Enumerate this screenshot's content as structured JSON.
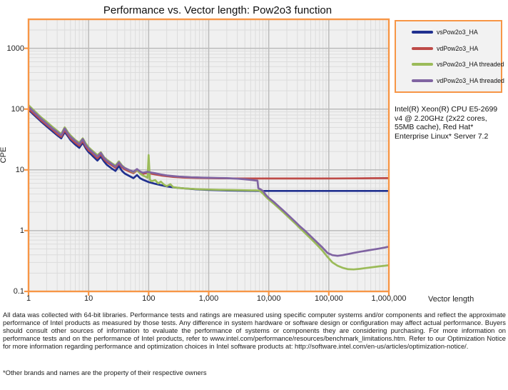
{
  "title": "Performance  vs.  Vector  length: Pow2o3  function",
  "chart_data": {
    "type": "line",
    "title": "Performance vs. Vector length: Pow2o3 function",
    "xlabel": "Vector length",
    "ylabel": "CPE",
    "x_axis": {
      "scale": "log",
      "min": 1,
      "max": 1000000,
      "tick_labels": [
        "1",
        "10",
        "100",
        "1,000",
        "10,000",
        "100,000",
        "1,000,000"
      ]
    },
    "y_axis": {
      "scale": "log",
      "min": 0.1,
      "max": 3000,
      "tick_labels": [
        "0.1",
        "1",
        "10",
        "100",
        "1000"
      ]
    },
    "grid": "log major and minor, gray on light-gray plot area, orange plot border",
    "legend_position": "outside top-right, orange-bordered box",
    "series": [
      {
        "name": "vsPow2o3_HA",
        "color": "#20308F",
        "points": [
          [
            1,
            97
          ],
          [
            1.3,
            76
          ],
          [
            1.6,
            63
          ],
          [
            2,
            52
          ],
          [
            2.5,
            43
          ],
          [
            3,
            37
          ],
          [
            3.5,
            33
          ],
          [
            4,
            42
          ],
          [
            4.5,
            36
          ],
          [
            5,
            31
          ],
          [
            6,
            26
          ],
          [
            7,
            23
          ],
          [
            8,
            28
          ],
          [
            9,
            22.5
          ],
          [
            10,
            19.5
          ],
          [
            11,
            18
          ],
          [
            12,
            16.5
          ],
          [
            14,
            14.2
          ],
          [
            16,
            16.5
          ],
          [
            18,
            13.8
          ],
          [
            20,
            12.2
          ],
          [
            24,
            10.6
          ],
          [
            28,
            9.6
          ],
          [
            32,
            11.5
          ],
          [
            36,
            9.6
          ],
          [
            40,
            8.7
          ],
          [
            48,
            7.9
          ],
          [
            56,
            7.3
          ],
          [
            64,
            8.2
          ],
          [
            72,
            7.3
          ],
          [
            80,
            6.9
          ],
          [
            96,
            6.4
          ],
          [
            100,
            6.3
          ],
          [
            128,
            5.9
          ],
          [
            160,
            5.6
          ],
          [
            200,
            5.35
          ],
          [
            256,
            5.15
          ],
          [
            320,
            5.05
          ],
          [
            400,
            4.95
          ],
          [
            512,
            4.85
          ],
          [
            640,
            4.78
          ],
          [
            800,
            4.72
          ],
          [
            1000,
            4.68
          ],
          [
            1500,
            4.62
          ],
          [
            2000,
            4.58
          ],
          [
            3000,
            4.55
          ],
          [
            5000,
            4.52
          ],
          [
            8000,
            4.5
          ],
          [
            16000,
            4.5
          ],
          [
            32000,
            4.5
          ],
          [
            64000,
            4.5
          ],
          [
            128000,
            4.5
          ],
          [
            256000,
            4.5
          ],
          [
            512000,
            4.5
          ],
          [
            1000000,
            4.5
          ]
        ]
      },
      {
        "name": "vdPow2o3_HA",
        "color": "#BE4B48",
        "points": [
          [
            1,
            101
          ],
          [
            1.3,
            80
          ],
          [
            1.6,
            66
          ],
          [
            2,
            55
          ],
          [
            2.5,
            46
          ],
          [
            3,
            39
          ],
          [
            3.5,
            35
          ],
          [
            4,
            45
          ],
          [
            4.5,
            38
          ],
          [
            5,
            33
          ],
          [
            6,
            28
          ],
          [
            7,
            25
          ],
          [
            8,
            30
          ],
          [
            9,
            24
          ],
          [
            10,
            21
          ],
          [
            11,
            19.5
          ],
          [
            12,
            18
          ],
          [
            14,
            15.5
          ],
          [
            16,
            18
          ],
          [
            18,
            15
          ],
          [
            20,
            13.5
          ],
          [
            24,
            12
          ],
          [
            28,
            10.8
          ],
          [
            32,
            12.8
          ],
          [
            36,
            11
          ],
          [
            40,
            10.2
          ],
          [
            48,
            9.4
          ],
          [
            56,
            8.8
          ],
          [
            64,
            9.8
          ],
          [
            72,
            8.9
          ],
          [
            80,
            8.6
          ],
          [
            96,
            8.9
          ],
          [
            100,
            8.8
          ],
          [
            128,
            8.4
          ],
          [
            160,
            8.1
          ],
          [
            200,
            7.85
          ],
          [
            256,
            7.65
          ],
          [
            320,
            7.55
          ],
          [
            400,
            7.45
          ],
          [
            512,
            7.4
          ],
          [
            640,
            7.35
          ],
          [
            800,
            7.32
          ],
          [
            1000,
            7.3
          ],
          [
            1500,
            7.27
          ],
          [
            2000,
            7.25
          ],
          [
            3000,
            7.22
          ],
          [
            5000,
            7.2
          ],
          [
            8000,
            7.2
          ],
          [
            16000,
            7.2
          ],
          [
            32000,
            7.2
          ],
          [
            64000,
            7.2
          ],
          [
            128000,
            7.22
          ],
          [
            256000,
            7.25
          ],
          [
            512000,
            7.28
          ],
          [
            1000000,
            7.3
          ]
        ]
      },
      {
        "name": "vsPow2o3_HA threaded",
        "color": "#9BBB59",
        "points": [
          [
            1,
            116
          ],
          [
            1.3,
            90
          ],
          [
            1.6,
            74
          ],
          [
            2,
            62
          ],
          [
            2.5,
            51
          ],
          [
            3,
            44
          ],
          [
            3.5,
            39
          ],
          [
            4,
            50
          ],
          [
            4.5,
            42
          ],
          [
            5,
            37
          ],
          [
            6,
            31
          ],
          [
            7,
            28
          ],
          [
            8,
            33
          ],
          [
            9,
            27
          ],
          [
            10,
            23.5
          ],
          [
            11,
            21.5
          ],
          [
            12,
            20
          ],
          [
            14,
            17.5
          ],
          [
            16,
            19.5
          ],
          [
            18,
            16.2
          ],
          [
            20,
            14.8
          ],
          [
            24,
            13
          ],
          [
            28,
            11.8
          ],
          [
            32,
            13.8
          ],
          [
            36,
            11.8
          ],
          [
            40,
            10.8
          ],
          [
            48,
            9.8
          ],
          [
            56,
            9.1
          ],
          [
            64,
            10
          ],
          [
            72,
            8.7
          ],
          [
            80,
            8.1
          ],
          [
            90,
            7.7
          ],
          [
            96,
            7.4
          ],
          [
            100,
            17.5
          ],
          [
            105,
            6.9
          ],
          [
            112,
            6.5
          ],
          [
            128,
            6.8
          ],
          [
            144,
            6
          ],
          [
            160,
            6.4
          ],
          [
            180,
            5.7
          ],
          [
            200,
            5.4
          ],
          [
            230,
            5.8
          ],
          [
            256,
            5.2
          ],
          [
            320,
            5.05
          ],
          [
            400,
            4.95
          ],
          [
            512,
            4.88
          ],
          [
            640,
            4.82
          ],
          [
            800,
            4.78
          ],
          [
            1000,
            4.75
          ],
          [
            1500,
            4.7
          ],
          [
            2000,
            4.68
          ],
          [
            3000,
            4.65
          ],
          [
            4000,
            4.62
          ],
          [
            5000,
            4.6
          ],
          [
            6000,
            4.6
          ],
          [
            7000,
            4.58
          ],
          [
            7500,
            4.3
          ],
          [
            8000,
            4.1
          ],
          [
            9000,
            3.6
          ],
          [
            10000,
            3.25
          ],
          [
            12000,
            2.8
          ],
          [
            15000,
            2.3
          ],
          [
            18000,
            1.95
          ],
          [
            22000,
            1.62
          ],
          [
            27000,
            1.34
          ],
          [
            33000,
            1.1
          ],
          [
            40000,
            0.92
          ],
          [
            50000,
            0.74
          ],
          [
            62000,
            0.6
          ],
          [
            78000,
            0.47
          ],
          [
            95000,
            0.37
          ],
          [
            115000,
            0.3
          ],
          [
            140000,
            0.265
          ],
          [
            170000,
            0.245
          ],
          [
            210000,
            0.232
          ],
          [
            260000,
            0.23
          ],
          [
            330000,
            0.235
          ],
          [
            420000,
            0.243
          ],
          [
            530000,
            0.25
          ],
          [
            670000,
            0.258
          ],
          [
            840000,
            0.264
          ],
          [
            1000000,
            0.27
          ]
        ]
      },
      {
        "name": "vdPow2o3_HA threaded",
        "color": "#8064A2",
        "points": [
          [
            1,
            109
          ],
          [
            1.3,
            85
          ],
          [
            1.6,
            70
          ],
          [
            2,
            58
          ],
          [
            2.5,
            48
          ],
          [
            3,
            42
          ],
          [
            3.5,
            37
          ],
          [
            4,
            48
          ],
          [
            4.5,
            40
          ],
          [
            5,
            35
          ],
          [
            6,
            30
          ],
          [
            7,
            26.5
          ],
          [
            8,
            32
          ],
          [
            9,
            25.5
          ],
          [
            10,
            22.5
          ],
          [
            11,
            20.5
          ],
          [
            12,
            19
          ],
          [
            14,
            16.5
          ],
          [
            16,
            19
          ],
          [
            18,
            15.8
          ],
          [
            20,
            14.3
          ],
          [
            24,
            12.6
          ],
          [
            28,
            11.3
          ],
          [
            32,
            13.3
          ],
          [
            36,
            11.5
          ],
          [
            40,
            10.7
          ],
          [
            48,
            9.9
          ],
          [
            56,
            9.3
          ],
          [
            64,
            10.3
          ],
          [
            72,
            9.4
          ],
          [
            80,
            9
          ],
          [
            96,
            9.3
          ],
          [
            100,
            9.2
          ],
          [
            128,
            8.8
          ],
          [
            160,
            8.4
          ],
          [
            200,
            8.1
          ],
          [
            256,
            7.9
          ],
          [
            320,
            7.75
          ],
          [
            400,
            7.65
          ],
          [
            512,
            7.55
          ],
          [
            640,
            7.5
          ],
          [
            800,
            7.45
          ],
          [
            1000,
            7.4
          ],
          [
            1500,
            7.35
          ],
          [
            2000,
            7.3
          ],
          [
            3000,
            7.15
          ],
          [
            4000,
            7
          ],
          [
            5000,
            6.85
          ],
          [
            6000,
            6.7
          ],
          [
            6500,
            6.65
          ],
          [
            6700,
            5
          ],
          [
            7500,
            4.7
          ],
          [
            8000,
            4.5
          ],
          [
            9000,
            3.85
          ],
          [
            10000,
            3.45
          ],
          [
            12000,
            3
          ],
          [
            15000,
            2.45
          ],
          [
            18000,
            2.08
          ],
          [
            22000,
            1.73
          ],
          [
            27000,
            1.43
          ],
          [
            33000,
            1.18
          ],
          [
            40000,
            1
          ],
          [
            50000,
            0.81
          ],
          [
            62000,
            0.66
          ],
          [
            78000,
            0.53
          ],
          [
            95000,
            0.43
          ],
          [
            115000,
            0.395
          ],
          [
            140000,
            0.385
          ],
          [
            170000,
            0.395
          ],
          [
            210000,
            0.412
          ],
          [
            260000,
            0.43
          ],
          [
            330000,
            0.45
          ],
          [
            420000,
            0.468
          ],
          [
            530000,
            0.485
          ],
          [
            670000,
            0.505
          ],
          [
            840000,
            0.525
          ],
          [
            1000000,
            0.545
          ]
        ]
      }
    ]
  },
  "annotation": {
    "system_info": "Intel(R) Xeon(R) CPU E5-2699 v4 @ 2.20GHz (2x22 cores, 55MB cache), Red Hat* Enterprise Linux* Server 7.2"
  },
  "footer": {
    "disclaimer": "All data was collected with 64-bit libraries. Performance tests and ratings are measured using specific computer systems and/or components and reflect the approximate performance of Intel products as measured by those tests. Any difference in system hardware or software design or configuration may affect actual performance. Buyers should consult other sources of information to evaluate the performance of systems or components they are considering purchasing. For more information on performance tests and on the performance of Intel products, refer to www.intel.com/performance/resources/benchmark_limitations.htm.  Refer to our Optimization Notice for more information regarding performance and optimization choices in Intel software products at: http://software.intel.com/en-us/articles/optimization-notice/.",
    "trademark": "*Other brands and names are the property of their respective owners"
  },
  "palette": {
    "plot_border_orange": "#F79646",
    "plot_background": "#F0F0F0",
    "grid_minor": "#DCDCDC",
    "grid_major": "#BBBBBB",
    "legend_background": "#F2F2F2",
    "page_background": "#FFFFFF"
  }
}
